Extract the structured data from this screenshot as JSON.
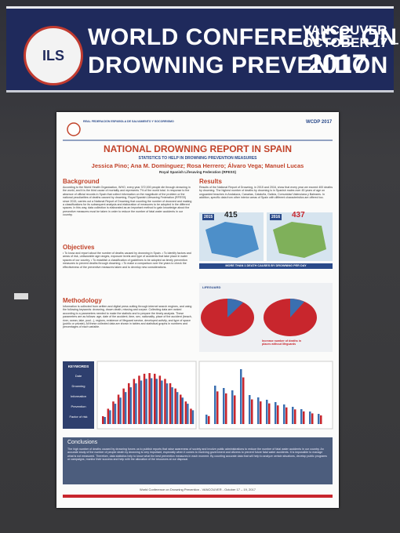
{
  "banner": {
    "logo": "ILS",
    "title_line1": "WORLD CONFERENCE ON",
    "title_line2": "DROWNING PREVENTION",
    "city": "VANCOUVER",
    "dates": "OCTOBER 17 – 19",
    "year": "2017"
  },
  "poster": {
    "org": "REAL FEDERACIÓN ESPAÑOLA DE SALVAMENTO Y SOCORRISMO",
    "badge": "WCDP 2017",
    "title": "NATIONAL DROWNING REPORT IN SPAIN",
    "subtitle": "STATISTICS TO HELP IN DROWNING PREVENTION MEASURES",
    "authors": "Jessica Pino; Ana M. Domínguez; Rosa Herrero; Álvaro Vega; Manuel Lucas",
    "affiliation": "Royal Spanish Lifesaving Federation (RFESS)",
    "background": {
      "heading": "Background",
      "text": "According to the World Health Organization, WHO, every year 372,000 people die through drowning in the world, and it is the third cause of mortality and represents 7% of the world total. In response to the absence of official records in Spain that collect information on the magnitude of the problem or the national peculiarities of deaths caused by drowning, Royal Spanish Lifesaving Federation (RFESS) since 2015, carries out a National Report of Drowning that counting the number of drowned and making a classifications for its subsequent analysis and elaboration of measures to be adopted in the different spaces. In this way, data collection is elaborated as an important method to gain knowledge about the preventive measures must be taken in order to reduce the number of fatal water accidents in our country."
    },
    "objectives": {
      "heading": "Objectives",
      "text": "• To know and report about the number of deaths caused by drowning in Spain. • To identify factors and areas of risk, unfavorable age ranges, exposure levels and type of accidents that take place in water spaces of our country. • To establish a classification of guidelines to be adopted as timely prevention measures to prevent deaths through drowning. • To make a comparison over the years to check the effectiveness of the preventive measures taken and to develop new considerations."
    },
    "methodology": {
      "heading": "Methodology",
      "text": "Information is collected from written and digital press cutting through internet search engines, and using the following keywords: drowning, drown death, missing and corpse. Collecting data are ranked according to a parameters needed to make the statistic and to prepare the timely analysis. These parameters are as follows: age, date of the accident, time, sex, nationality, place of the accident (beach, river, ocean, lake, pool...), regions, existence of lifeguard service, developed activity, and type of space (public or private). All these collected data are shown in tables and statistical graphs in numbers and percentages of each variable."
    },
    "keywords": {
      "heading": "KEYWORDS",
      "items": [
        "Date",
        "Drowning",
        "Information",
        "Prevention",
        "Factor of risk"
      ]
    },
    "results": {
      "heading": "Results",
      "text": "Results of the National Report of Drowning, in 2015 and 2016, show that every year we exceed 400 deaths by drowning. The highest number of deaths by drowning is in Spanish males over 45 years of age on unguarded beaches in Andalucía, Canarias, Cataluña, Galicia, Comunidad Valenciana y Baleares. In addition, specific data from other interior areas of Spain with different characteristics are offered too.",
      "map1_year": "2015",
      "map1_count": "415",
      "map2_year": "2016",
      "map2_count": "437",
      "highlight": "MORE THAN 1 DEATH CAUSES BY DROWNING PER DAY",
      "pie_label": "LIFEGUARD",
      "pie_note": "Increase number of deaths in places without lifeguards"
    },
    "conclusions": {
      "heading": "Conclusions",
      "text": "The high number of deaths caused by drowning forces us to publish reports that raise awareness of society and involve public administrations to reduce the number of fatal water accidents in our country. An accurate study of the number of people death by drowning is very important, especially when it comes to involving government and citizens to prevent future fatal water accidents. It is impossible to manage what is not measured. Therefore, data statistics help to know what the best prevention measures in each moment. By counting accurate data that will help to analyze certain situations, develop public programs or campaigns, monitor their success and help with the allocation of the resources at our disposal."
    },
    "footer": "World Conference on Drowning Prevention - VANCOUVER - October 17 – 19, 2017"
  }
}
